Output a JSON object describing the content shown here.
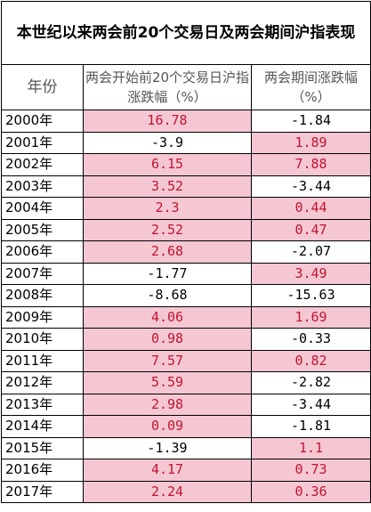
{
  "title": "本世纪以来两会前20个交易日及两会期间沪指表现",
  "headers": {
    "year": "年份",
    "before": "两会开始前20个交易日沪指涨跌幅（%）",
    "during": "两会期间涨跌幅（%）"
  },
  "colors": {
    "positive_fill": "#f4c7d3",
    "positive_text": "#c0152f",
    "negative_text": "#000000"
  },
  "rows": [
    {
      "year": "2000年",
      "before": "16.78",
      "during": "-1.84"
    },
    {
      "year": "2001年",
      "before": "-3.9",
      "during": "1.89"
    },
    {
      "year": "2002年",
      "before": "6.15",
      "during": "7.88"
    },
    {
      "year": "2003年",
      "before": "3.52",
      "during": "-3.44"
    },
    {
      "year": "2004年",
      "before": "2.3",
      "during": "0.44"
    },
    {
      "year": "2005年",
      "before": "2.52",
      "during": "0.47"
    },
    {
      "year": "2006年",
      "before": "2.68",
      "during": "-2.07"
    },
    {
      "year": "2007年",
      "before": "-1.77",
      "during": "3.49"
    },
    {
      "year": "2008年",
      "before": "-8.68",
      "during": "-15.63"
    },
    {
      "year": "2009年",
      "before": "4.06",
      "during": "1.69"
    },
    {
      "year": "2010年",
      "before": "0.98",
      "during": "-0.33"
    },
    {
      "year": "2011年",
      "before": "7.57",
      "during": "0.82"
    },
    {
      "year": "2012年",
      "before": "5.59",
      "during": "-2.82"
    },
    {
      "year": "2013年",
      "before": "2.98",
      "during": "-3.44"
    },
    {
      "year": "2014年",
      "before": "0.09",
      "during": "-1.81"
    },
    {
      "year": "2015年",
      "before": "-1.39",
      "during": "1.1"
    },
    {
      "year": "2016年",
      "before": "4.17",
      "during": "0.73"
    },
    {
      "year": "2017年",
      "before": "2.24",
      "during": "0.36"
    }
  ]
}
